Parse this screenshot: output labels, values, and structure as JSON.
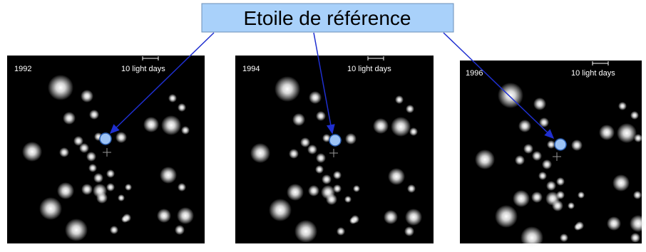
{
  "header": {
    "title": "Etoile de référence"
  },
  "panels": [
    {
      "year": "1992",
      "scale_label": "10 light days"
    },
    {
      "year": "1994",
      "scale_label": "10 light days"
    },
    {
      "year": "1996",
      "scale_label": "10 light days"
    }
  ]
}
